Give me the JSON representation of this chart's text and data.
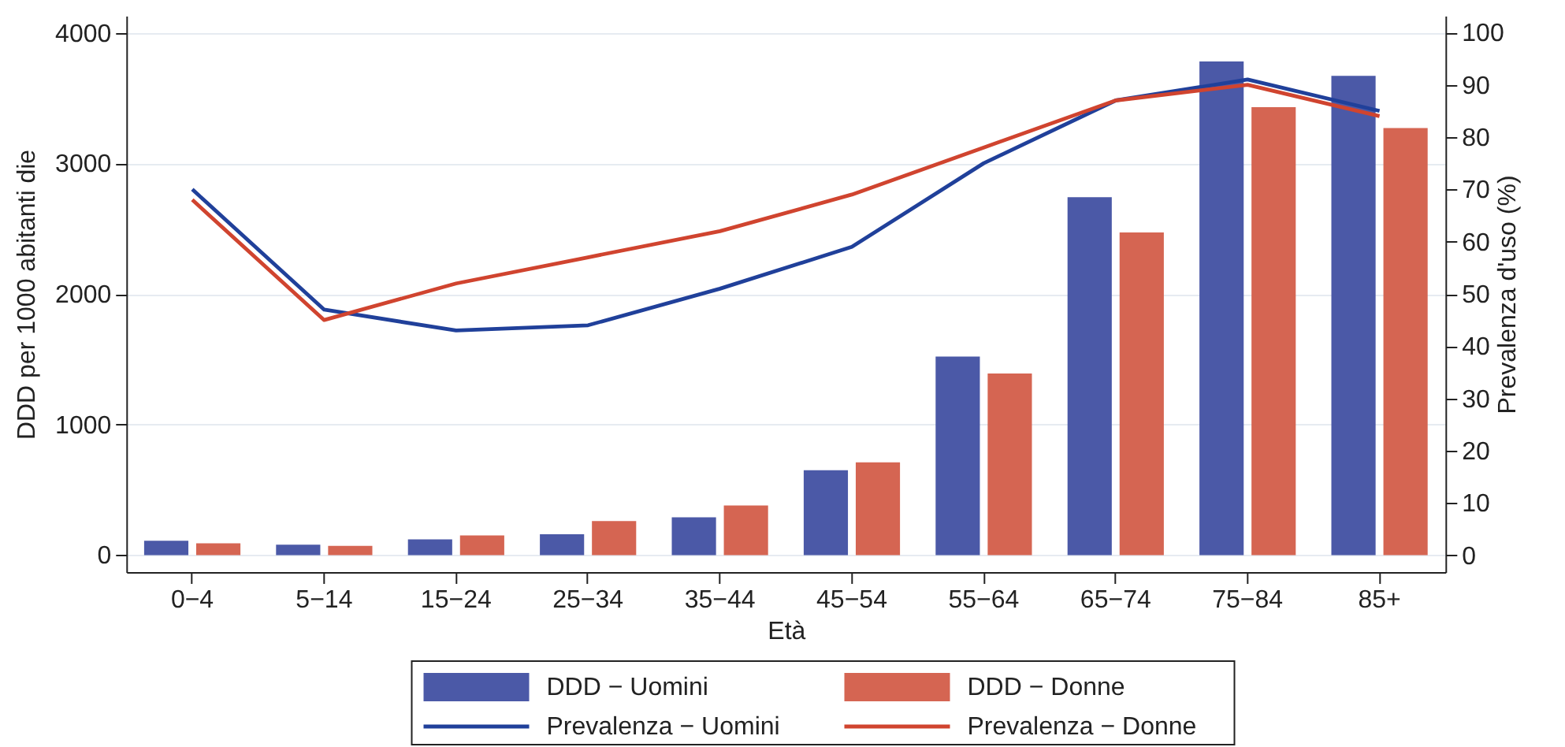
{
  "chart_data": {
    "type": "bar",
    "xlabel": "Età",
    "ylabel": "DDD per 1000 abitanti die",
    "y2label": "Prevalenza d'uso (%)",
    "categories": [
      "0−4",
      "5−14",
      "15−24",
      "25−34",
      "35−44",
      "45−54",
      "55−64",
      "65−74",
      "75−84",
      "85+"
    ],
    "series": [
      {
        "name": "DDD − Uomini",
        "color": "#4b59a7",
        "values": [
          110,
          80,
          120,
          160,
          290,
          650,
          1520,
          2740,
          3780,
          3670
        ]
      },
      {
        "name": "DDD − Donne",
        "color": "#d56552",
        "values": [
          90,
          70,
          150,
          260,
          380,
          710,
          1390,
          2470,
          3430,
          3270
        ]
      },
      {
        "name": "Prevalenza − Uomini",
        "type": "line",
        "axis": "y2",
        "color": "#20409a",
        "values": [
          70,
          47,
          43,
          44,
          51,
          59,
          75,
          87,
          91,
          85
        ]
      },
      {
        "name": "Prevalenza − Donne",
        "type": "line",
        "axis": "y2",
        "color": "#d0442f",
        "values": [
          68,
          45,
          52,
          57,
          62,
          69,
          78,
          87,
          90,
          84
        ]
      }
    ],
    "ylim": [
      -130,
      4130
    ],
    "yticks": [
      0,
      1000,
      2000,
      3000,
      4000
    ],
    "y2lim": [
      -3.2,
      103.2
    ],
    "y2ticks": [
      0,
      10,
      20,
      30,
      40,
      50,
      60,
      70,
      80,
      90,
      100
    ],
    "grid": "y",
    "legend": "bottom",
    "line_style": "solid"
  }
}
